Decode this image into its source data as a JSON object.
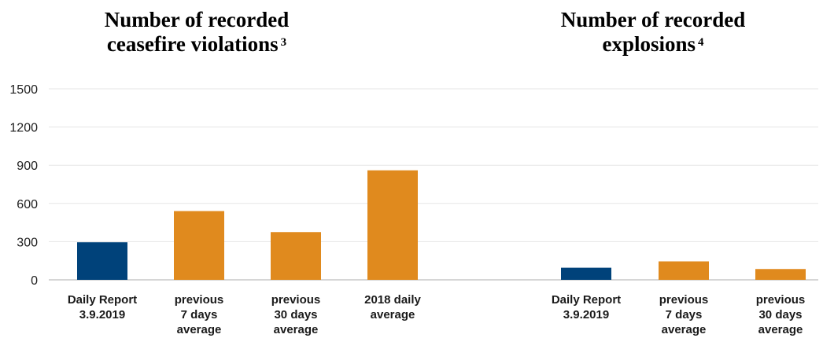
{
  "titles": {
    "left": {
      "text": "Number of recorded ceasefire violations",
      "footnote": "3"
    },
    "right": {
      "text": "Number of recorded explosions",
      "footnote": "4"
    }
  },
  "colors": {
    "daily": "#00427a",
    "average": "#e08a1e",
    "grid": "#e6e6e6",
    "axis": "#c8c8c8"
  },
  "chart_data": {
    "type": "bar",
    "ylim": [
      0,
      1500
    ],
    "yticks": [
      0,
      300,
      600,
      900,
      1200,
      1500
    ],
    "grid": true,
    "groups": [
      {
        "title": "Number of recorded ceasefire violations",
        "categories": [
          [
            "Daily Report",
            "3.9.2019"
          ],
          [
            "previous",
            "7 days",
            "average"
          ],
          [
            "previous",
            "30 days",
            "average"
          ],
          [
            "2018 daily",
            "average"
          ]
        ],
        "values": [
          295,
          540,
          375,
          860
        ],
        "bar_color_keys": [
          "daily",
          "average",
          "average",
          "average"
        ]
      },
      {
        "title": "Number of recorded explosions",
        "categories": [
          [
            "Daily Report",
            "3.9.2019"
          ],
          [
            "previous",
            "7 days",
            "average"
          ],
          [
            "previous",
            "30 days",
            "average"
          ]
        ],
        "values": [
          95,
          145,
          85
        ],
        "bar_color_keys": [
          "daily",
          "average",
          "average"
        ]
      }
    ]
  }
}
